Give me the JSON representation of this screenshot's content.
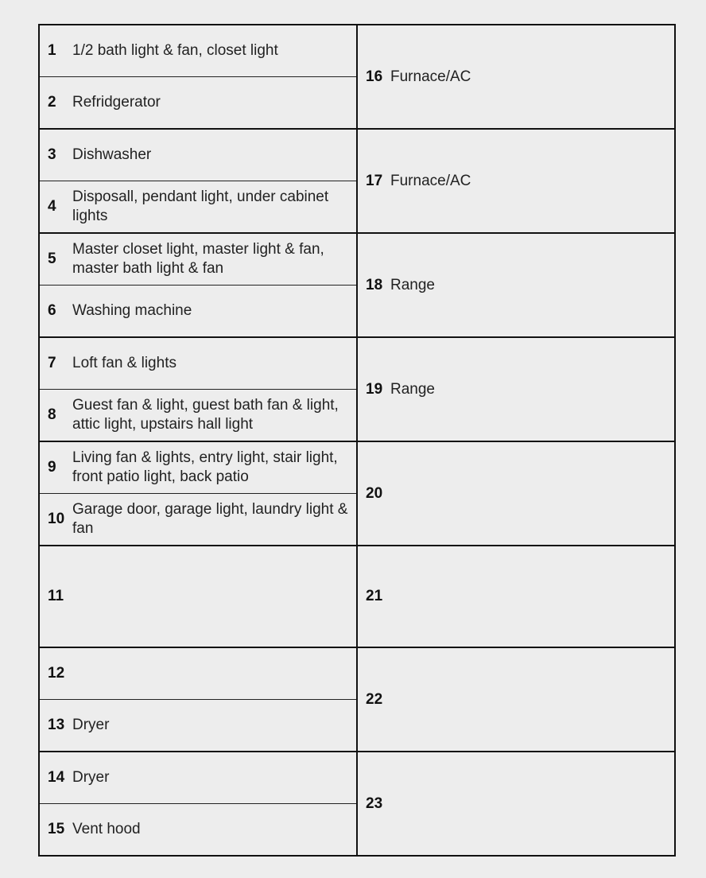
{
  "panel": {
    "background_color": "#ededed",
    "border_color": "#111111",
    "text_color": "#222222",
    "font_size_pt": 14,
    "number_font_weight": "bold",
    "left": {
      "1": "1/2 bath light & fan, closet light",
      "2": "Refridgerator",
      "3": "Dishwasher",
      "4": "Disposall, pendant light, under cabinet lights",
      "5": "Master closet light, master light & fan, master bath light & fan",
      "6": "Washing machine",
      "7": "Loft fan & lights",
      "8": "Guest fan & light, guest bath fan & light, attic light, upstairs hall light",
      "9": "Living fan & lights, entry light, stair light, front patio light, back patio",
      "10": "Garage door, garage light, laundry light & fan",
      "11": "",
      "12": "",
      "13": "Dryer",
      "14": "Dryer",
      "15": "Vent hood"
    },
    "right": {
      "16": "Furnace/AC",
      "17": "Furnace/AC",
      "18": "Range",
      "19": "Range",
      "20": "",
      "21": "",
      "22": "",
      "23": ""
    },
    "numbers": {
      "n1": "1",
      "n2": "2",
      "n3": "3",
      "n4": "4",
      "n5": "5",
      "n6": "6",
      "n7": "7",
      "n8": "8",
      "n9": "9",
      "n10": "10",
      "n11": "11",
      "n12": "12",
      "n13": "13",
      "n14": "14",
      "n15": "15",
      "n16": "16",
      "n17": "17",
      "n18": "18",
      "n19": "19",
      "n20": "20",
      "n21": "21",
      "n22": "22",
      "n23": "23"
    }
  }
}
